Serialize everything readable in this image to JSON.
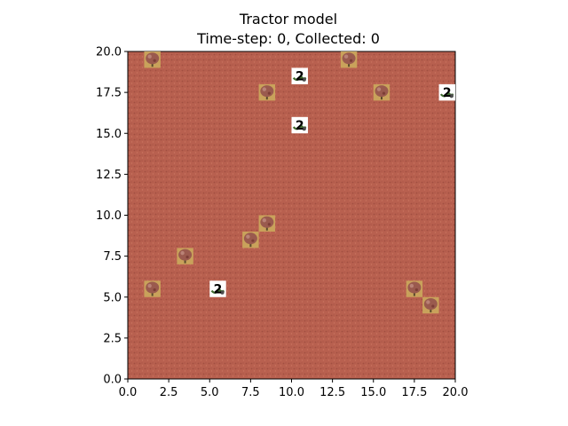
{
  "chart_data": {
    "type": "scatter",
    "title": "Tractor model",
    "subtitle": "Time-step: 0, Collected: 0",
    "xlabel": "",
    "ylabel": "",
    "xlim": [
      0,
      20
    ],
    "ylim": [
      0,
      20
    ],
    "grid": false,
    "x_ticks": [
      "0.0",
      "2.5",
      "5.0",
      "7.5",
      "10.0",
      "12.5",
      "15.0",
      "17.5",
      "20.0"
    ],
    "y_ticks": [
      "0.0",
      "2.5",
      "5.0",
      "7.5",
      "10.0",
      "12.5",
      "15.0",
      "17.5",
      "20.0"
    ],
    "field_color": "#b8604f",
    "series": [
      {
        "kind": "fruit-tree",
        "points": [
          {
            "x": 1.5,
            "y": 19.5
          },
          {
            "x": 13.5,
            "y": 19.5
          },
          {
            "x": 8.5,
            "y": 17.5
          },
          {
            "x": 15.5,
            "y": 17.5
          },
          {
            "x": 8.5,
            "y": 9.5
          },
          {
            "x": 7.5,
            "y": 8.5
          },
          {
            "x": 3.5,
            "y": 7.5
          },
          {
            "x": 1.5,
            "y": 5.5
          },
          {
            "x": 17.5,
            "y": 5.5
          },
          {
            "x": 18.5,
            "y": 4.5
          }
        ]
      },
      {
        "kind": "tractor",
        "points": [
          {
            "x": 10.5,
            "y": 18.5,
            "label": "2"
          },
          {
            "x": 19.5,
            "y": 17.5,
            "label": "2"
          },
          {
            "x": 10.5,
            "y": 15.5,
            "label": "2"
          },
          {
            "x": 5.5,
            "y": 5.5,
            "label": "2"
          }
        ]
      }
    ]
  }
}
